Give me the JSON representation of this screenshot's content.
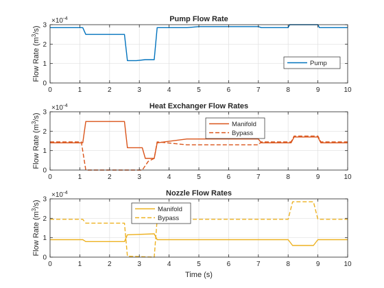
{
  "chart_data": [
    {
      "type": "line",
      "title": "Pump Flow Rate",
      "xlabel": "",
      "ylabel": "Flow Rate (m³/s)",
      "ylabel_parts": [
        "Flow Rate (m",
        "3",
        "/s)"
      ],
      "y_exponent_label": "×10",
      "y_exponent": "-4",
      "xlim": [
        0,
        10
      ],
      "ylim": [
        0,
        3
      ],
      "x_ticks": [
        "0",
        "1",
        "2",
        "3",
        "4",
        "5",
        "6",
        "7",
        "8",
        "9",
        "10"
      ],
      "y_ticks": [
        "0",
        "1",
        "2",
        "3"
      ],
      "grid": true,
      "legend_position": "lower-right",
      "series": [
        {
          "name": "Pump",
          "color": "#0072BD",
          "style": "solid",
          "x": [
            0,
            1.1,
            1.2,
            2.5,
            2.6,
            2.9,
            3.2,
            3.5,
            3.6,
            4.6,
            5.0,
            7.0,
            7.1,
            8.0,
            8.05,
            9.0,
            9.05,
            10
          ],
          "y": [
            2.85,
            2.85,
            2.5,
            2.5,
            1.15,
            1.15,
            1.2,
            1.2,
            2.85,
            2.85,
            2.9,
            2.9,
            2.85,
            2.85,
            3.0,
            3.0,
            2.85,
            2.85
          ]
        }
      ]
    },
    {
      "type": "line",
      "title": "Heat Exchanger Flow Rates",
      "xlabel": "",
      "ylabel": "Flow Rate (m³/s)",
      "ylabel_parts": [
        "Flow Rate (m",
        "3",
        "/s)"
      ],
      "y_exponent_label": "×10",
      "y_exponent": "-4",
      "xlim": [
        0,
        10
      ],
      "ylim": [
        0,
        3
      ],
      "x_ticks": [
        "0",
        "1",
        "2",
        "3",
        "4",
        "5",
        "6",
        "7",
        "8",
        "9",
        "10"
      ],
      "y_ticks": [
        "0",
        "1",
        "2",
        "3"
      ],
      "grid": true,
      "legend_position": "top-center",
      "series": [
        {
          "name": "Manifold",
          "color": "#D95319",
          "style": "solid",
          "x": [
            0,
            1.1,
            1.2,
            2.5,
            2.6,
            3.1,
            3.2,
            3.5,
            3.6,
            4.6,
            7.0,
            7.1,
            8.1,
            8.2,
            9.0,
            9.1,
            10
          ],
          "y": [
            1.4,
            1.4,
            2.5,
            2.5,
            1.15,
            1.15,
            0.6,
            0.6,
            1.4,
            1.6,
            1.6,
            1.4,
            1.4,
            1.7,
            1.7,
            1.4,
            1.4
          ]
        },
        {
          "name": "Bypass",
          "color": "#D95319",
          "style": "dashed",
          "x": [
            0,
            1.05,
            1.2,
            2.5,
            3.1,
            3.3,
            3.5,
            3.6,
            4.6,
            7.0,
            7.1,
            8.1,
            8.2,
            9.0,
            9.1,
            10
          ],
          "y": [
            1.45,
            1.45,
            0.0,
            0.0,
            0.0,
            0.45,
            0.6,
            1.45,
            1.3,
            1.3,
            1.45,
            1.45,
            1.75,
            1.75,
            1.45,
            1.45
          ]
        }
      ]
    },
    {
      "type": "line",
      "title": "Nozzle Flow Rates",
      "xlabel": "Time (s)",
      "ylabel": "Flow Rate (m³/s)",
      "ylabel_parts": [
        "Flow Rate (m",
        "3",
        "/s)"
      ],
      "y_exponent_label": "×10",
      "y_exponent": "-4",
      "xlim": [
        0,
        10
      ],
      "ylim": [
        0,
        3
      ],
      "x_ticks": [
        "0",
        "1",
        "2",
        "3",
        "4",
        "5",
        "6",
        "7",
        "8",
        "9",
        "10"
      ],
      "y_ticks": [
        "0",
        "1",
        "2",
        "3"
      ],
      "grid": true,
      "legend_position": "top-left",
      "series": [
        {
          "name": "Manifold",
          "color": "#EDB120",
          "style": "solid",
          "x": [
            0,
            1.1,
            1.2,
            2.5,
            2.6,
            3.5,
            3.6,
            8.0,
            8.15,
            8.85,
            9.0,
            10
          ],
          "y": [
            0.9,
            0.9,
            0.8,
            0.8,
            1.15,
            1.2,
            0.9,
            0.9,
            0.6,
            0.6,
            0.9,
            0.9
          ]
        },
        {
          "name": "Bypass",
          "color": "#EDB120",
          "style": "dashed",
          "x": [
            0,
            1.1,
            1.2,
            2.5,
            2.6,
            3.5,
            3.6,
            8.0,
            8.15,
            8.85,
            9.0,
            10
          ],
          "y": [
            1.95,
            1.95,
            1.75,
            1.75,
            0.05,
            0.0,
            1.95,
            1.95,
            2.85,
            2.85,
            1.95,
            1.95
          ]
        }
      ]
    }
  ]
}
